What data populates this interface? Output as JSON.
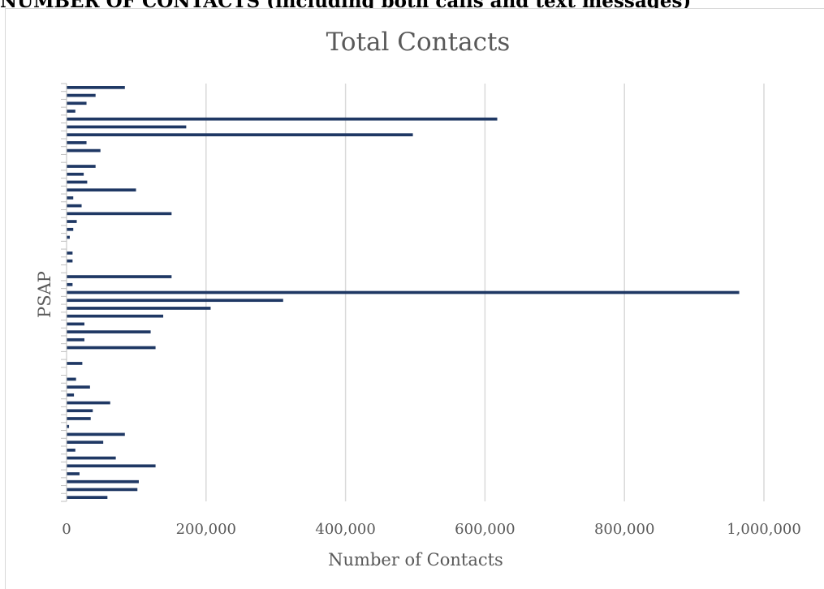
{
  "page_heading": "NUMBER OF CONTACTS (including both calls and text messages)",
  "chart_data": {
    "type": "bar",
    "orientation": "horizontal",
    "title": "Total Contacts",
    "xlabel": "Number of Contacts",
    "ylabel": "PSAP",
    "xlim": [
      0,
      1000000
    ],
    "x_ticks": [
      0,
      200000,
      400000,
      600000,
      800000,
      1000000
    ],
    "x_tick_labels": [
      "0",
      "200,000",
      "400,000",
      "600,000",
      "800,000",
      "1,000,000"
    ],
    "grid": "vertical",
    "legend": "none",
    "bar_color": "#1f3864",
    "categories_labeled": false,
    "values": [
      83000,
      41000,
      28000,
      12000,
      617000,
      171000,
      496000,
      28000,
      48000,
      0,
      41000,
      24000,
      29000,
      99000,
      9000,
      21000,
      150000,
      14000,
      9000,
      4000,
      0,
      8000,
      8000,
      0,
      150000,
      8000,
      964000,
      310000,
      206000,
      138000,
      25000,
      120000,
      25000,
      127000,
      0,
      22000,
      0,
      13000,
      33000,
      10000,
      62000,
      37000,
      34000,
      3000,
      83000,
      52000,
      12000,
      70000,
      127000,
      18000,
      103000,
      101000,
      58000
    ]
  }
}
